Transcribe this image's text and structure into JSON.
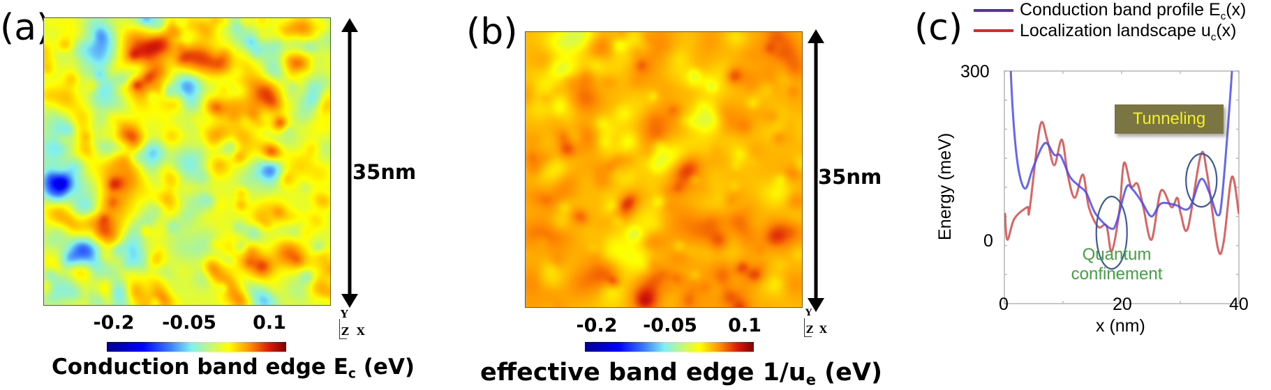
{
  "panels": {
    "a": {
      "label": "(a)",
      "scale_label": "35nm",
      "colorbar": {
        "ticks": [
          "-0.2",
          "-0.05",
          "0.1"
        ],
        "colormap": "jet",
        "title_main": "Conduction band edge E",
        "title_sub": "c",
        "title_unit": " (eV)"
      },
      "axes_indicator": {
        "y": "Y",
        "z": "Z",
        "x": "X"
      }
    },
    "b": {
      "label": "(b)",
      "scale_label": "35nm",
      "colorbar": {
        "ticks": [
          "-0.2",
          "-0.05",
          "0.1"
        ],
        "colormap": "jet",
        "title_main": "effective band edge 1/u",
        "title_sub": "e",
        "title_unit": " (eV)"
      },
      "axes_indicator": {
        "y": "Y",
        "z": "Z",
        "x": "X"
      }
    },
    "c": {
      "label": "(c)",
      "legend": [
        {
          "main": "Conduction band profile E",
          "sub": "c",
          "tail": "(x)",
          "color": "#5b2d9e"
        },
        {
          "main": "Localization landscape u",
          "sub": "c",
          "tail": "(x)",
          "color": "#d42a2a"
        }
      ],
      "annotations": {
        "tunneling": "Tunneling",
        "quantum_line1": "Quantum",
        "quantum_line2": "confinement"
      },
      "y_ticks": [
        "300",
        "0"
      ],
      "x_ticks": [
        "0",
        "20",
        "40"
      ],
      "xlabel": "x (nm)",
      "ylabel": "Energy (meV)"
    }
  },
  "colors": {
    "blue_curve": "#4a4af5",
    "red_curve": "#d44848",
    "ellipse": "#3c5a9a",
    "tunneling_bg": "#7b7544",
    "tunneling_text": "#f4f21c",
    "quantum_text": "#3fa33f"
  },
  "chart_data": [
    {
      "type": "heatmap",
      "title": "Conduction band edge E_c (eV)",
      "panel": "(a)",
      "colormap": "jet",
      "colorbar_ticks": [
        -0.2,
        -0.05,
        0.1
      ],
      "extent_nm": 35,
      "axes": [
        "X",
        "Y",
        "Z"
      ]
    },
    {
      "type": "heatmap",
      "title": "effective band edge 1/u_e (eV)",
      "panel": "(b)",
      "colormap": "jet",
      "colorbar_ticks": [
        -0.2,
        -0.05,
        0.1
      ],
      "extent_nm": 35,
      "axes": [
        "X",
        "Y",
        "Z"
      ]
    },
    {
      "type": "line",
      "panel": "(c)",
      "title": "",
      "xlabel": "x (nm)",
      "ylabel": "Energy (meV)",
      "xlim": [
        0,
        40
      ],
      "ylim": [
        -100,
        300
      ],
      "x_ticks": [
        0,
        20,
        40
      ],
      "y_ticks_labeled": [
        0,
        300
      ],
      "grid": false,
      "legend_position": "top",
      "annotations": [
        {
          "text": "Tunneling",
          "x": 30,
          "y": 200
        },
        {
          "text": "Quantum confinement",
          "x": 18,
          "y": -55
        },
        {
          "shape": "ellipse",
          "cx": 18.3,
          "cy": 25,
          "label": "quantum-confinement-region"
        },
        {
          "shape": "ellipse",
          "cx": 33.6,
          "cy": 110,
          "label": "tunneling-region"
        }
      ],
      "series": [
        {
          "name": "Conduction band profile Ec(x)",
          "color": "#4a4af5",
          "x": [
            1.1,
            1.7,
            2.5,
            3.6,
            4.9,
            6.9,
            8.5,
            9.6,
            11.2,
            12.8,
            14.0,
            15.6,
            18.2,
            19.2,
            20.8,
            21.9,
            23.5,
            25.1,
            26.7,
            29.1,
            31.5,
            33.5,
            35.0,
            36.4,
            37.2,
            38.8
          ],
          "y": [
            298,
            194,
            126,
            98,
            134,
            176,
            156,
            154,
            118,
            102,
            90,
            54,
            29,
            42,
            100,
            96,
            74,
            50,
            72,
            70,
            64,
            114,
            90,
            52,
            90,
            298
          ]
        },
        {
          "name": "Localization landscape uc(x)",
          "color": "#d44848",
          "x": [
            0.1,
            0.5,
            1.7,
            3.9,
            4.3,
            6.1,
            7.3,
            8.5,
            9.8,
            10.8,
            12.0,
            13.4,
            14.4,
            16.0,
            17.4,
            18.3,
            19.6,
            20.4,
            21.6,
            22.7,
            23.7,
            25.1,
            26.7,
            28.5,
            29.5,
            30.1,
            31.3,
            33.5,
            34.6,
            36.4,
            37.4,
            38.8,
            40.0
          ],
          "y": [
            56,
            10,
            46,
            66,
            62,
            206,
            182,
            138,
            182,
            122,
            82,
            122,
            66,
            32,
            34,
            -10,
            58,
            142,
            102,
            106,
            66,
            10,
            94,
            66,
            82,
            54,
            30,
            156,
            122,
            -4,
            6,
            118,
            54
          ]
        }
      ]
    }
  ]
}
